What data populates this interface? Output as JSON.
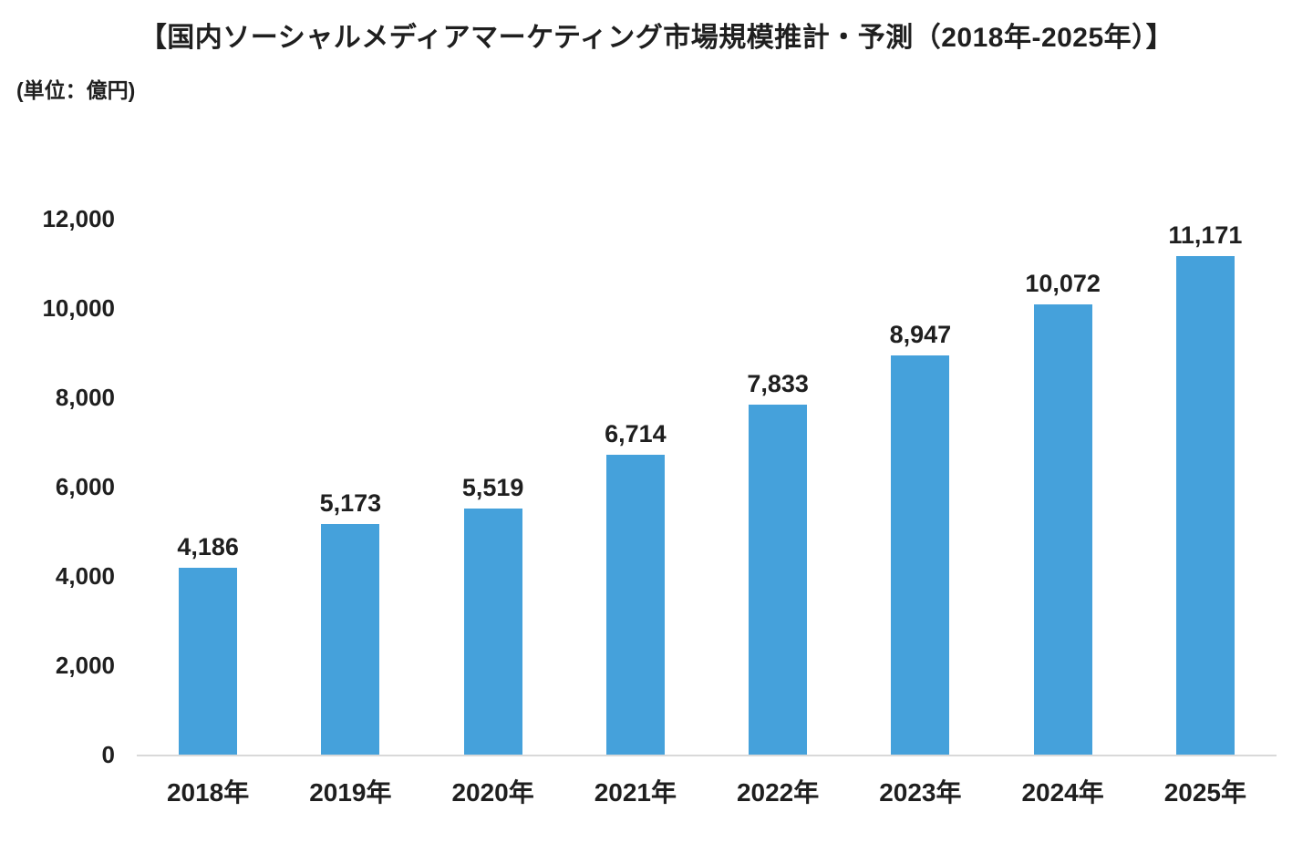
{
  "page": {
    "background": "#ffffff"
  },
  "header": {
    "title": "【国内ソーシャルメディアマーケティング市場規模推計・予測（2018年-2025年）】",
    "unit_note": "(単位：億円)"
  },
  "chart_data": {
    "type": "bar",
    "title": "国内ソーシャルメディアマーケティング市場規模推計・予測（2018年-2025年）",
    "unit": "億円",
    "categories": [
      "2018年",
      "2019年",
      "2020年",
      "2021年",
      "2022年",
      "2023年",
      "2024年",
      "2025年"
    ],
    "values": [
      4186,
      5173,
      5519,
      6714,
      7833,
      8947,
      10072,
      11171
    ],
    "value_labels": [
      "4,186",
      "5,173",
      "5,519",
      "6,714",
      "7,833",
      "8,947",
      "10,072",
      "11,171"
    ],
    "xlabel": "",
    "ylabel": "",
    "ylim": [
      0,
      12000
    ],
    "y_ticks": [
      0,
      2000,
      4000,
      6000,
      8000,
      10000,
      12000
    ],
    "y_tick_labels": [
      "0",
      "2,000",
      "4,000",
      "6,000",
      "8,000",
      "10,000",
      "12,000"
    ],
    "grid": false,
    "legend_position": "none",
    "bar_color": "#45A1DB",
    "axis_line_color": "#d9d9d9",
    "text_color": "#1f1f1f"
  }
}
